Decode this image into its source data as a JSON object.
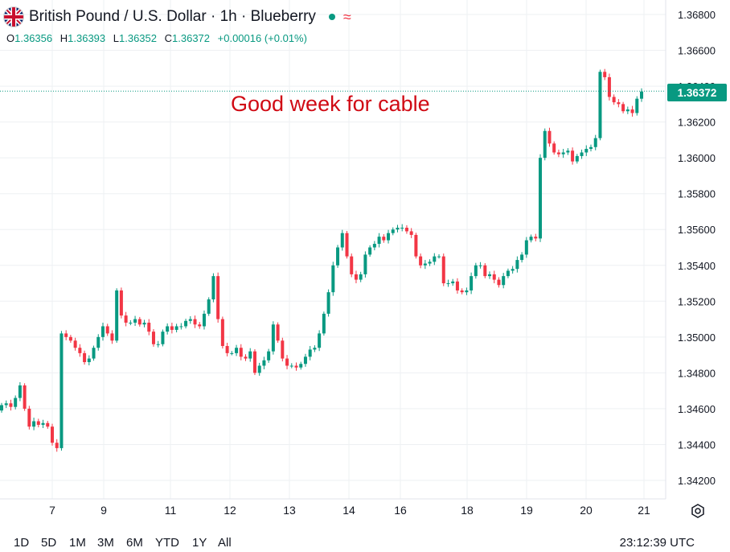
{
  "header": {
    "title": "British Pound / U.S. Dollar · 1h · Blueberry",
    "flag_icon": "uk-flag-icon",
    "status_color": "#089981",
    "wave_icon": "wave-icon"
  },
  "ohlc": {
    "o_label": "O",
    "o_value": "1.36356",
    "h_label": "H",
    "h_value": "1.36393",
    "l_label": "L",
    "l_value": "1.36352",
    "c_label": "C",
    "c_value": "1.36372",
    "change": "+0.00016 (+0.01%)"
  },
  "annotation": {
    "text": "Good week for cable",
    "color": "#d00a14"
  },
  "price_axis": {
    "ticks": [
      "1.36800",
      "1.36600",
      "1.36400",
      "1.36200",
      "1.36000",
      "1.35800",
      "1.35600",
      "1.35400",
      "1.35200",
      "1.35000",
      "1.34800",
      "1.34600",
      "1.34400",
      "1.34200"
    ],
    "current_price": "1.36372"
  },
  "time_axis": {
    "labels": [
      "7",
      "9",
      "11",
      "12",
      "13",
      "14",
      "16",
      "18",
      "19",
      "20",
      "21"
    ]
  },
  "toolbar": {
    "timeframes": [
      "1D",
      "5D",
      "1M",
      "3M",
      "6M",
      "YTD",
      "1Y",
      "All"
    ],
    "clock": "23:12:39 UTC",
    "settings_icon": "settings-icon"
  },
  "colors": {
    "up": "#089981",
    "down": "#f23645",
    "grid": "#eef0f3"
  },
  "chart_data": {
    "type": "line",
    "title": "British Pound / U.S. Dollar · 1h · Blueberry",
    "xlabel": "",
    "ylabel": "",
    "ylim": [
      1.341,
      1.369
    ],
    "x_labels": [
      "7",
      "9",
      "11",
      "12",
      "13",
      "14",
      "16",
      "18",
      "19",
      "20",
      "21"
    ],
    "series": [
      {
        "values": [
          1.3462,
          1.3463,
          1.3461,
          1.3466,
          1.3473,
          1.346,
          1.345,
          1.3453,
          1.3451,
          1.3452,
          1.345,
          1.3441,
          1.3438,
          1.3502,
          1.35,
          1.3498,
          1.3494,
          1.3491,
          1.3486,
          1.3488,
          1.3494,
          1.35,
          1.3506,
          1.3502,
          1.3498,
          1.3526,
          1.3512,
          1.3508,
          1.3508,
          1.351,
          1.3507,
          1.3508,
          1.3503,
          1.3496,
          1.3496,
          1.3503,
          1.3506,
          1.3504,
          1.3506,
          1.3506,
          1.3509,
          1.351,
          1.3507,
          1.3506,
          1.3513,
          1.3521,
          1.3534,
          1.351,
          1.3495,
          1.3491,
          1.3491,
          1.3494,
          1.3489,
          1.3488,
          1.3492,
          1.348,
          1.3484,
          1.3487,
          1.3492,
          1.3507,
          1.3498,
          1.3488,
          1.3484,
          1.3484,
          1.3483,
          1.3485,
          1.3489,
          1.3493,
          1.3494,
          1.3502,
          1.3513,
          1.3525,
          1.354,
          1.355,
          1.3558,
          1.3545,
          1.3535,
          1.3532,
          1.3535,
          1.3546,
          1.355,
          1.3552,
          1.3556,
          1.3554,
          1.3558,
          1.356,
          1.3561,
          1.3561,
          1.3559,
          1.3557,
          1.3545,
          1.354,
          1.3541,
          1.3542,
          1.3545,
          1.3545,
          1.353,
          1.353,
          1.3531,
          1.3526,
          1.3525,
          1.3526,
          1.3534,
          1.354,
          1.354,
          1.3534,
          1.3535,
          1.3532,
          1.3529,
          1.3534,
          1.3537,
          1.3538,
          1.3543,
          1.3546,
          1.3554,
          1.3556,
          1.3555,
          1.36,
          1.3615,
          1.3608,
          1.3603,
          1.3602,
          1.3603,
          1.3604,
          1.3598,
          1.3601,
          1.3603,
          1.3605,
          1.3606,
          1.3611,
          1.3648,
          1.3645,
          1.3634,
          1.3631,
          1.363,
          1.3626,
          1.3627,
          1.3625,
          1.3633,
          1.3637
        ]
      }
    ]
  }
}
